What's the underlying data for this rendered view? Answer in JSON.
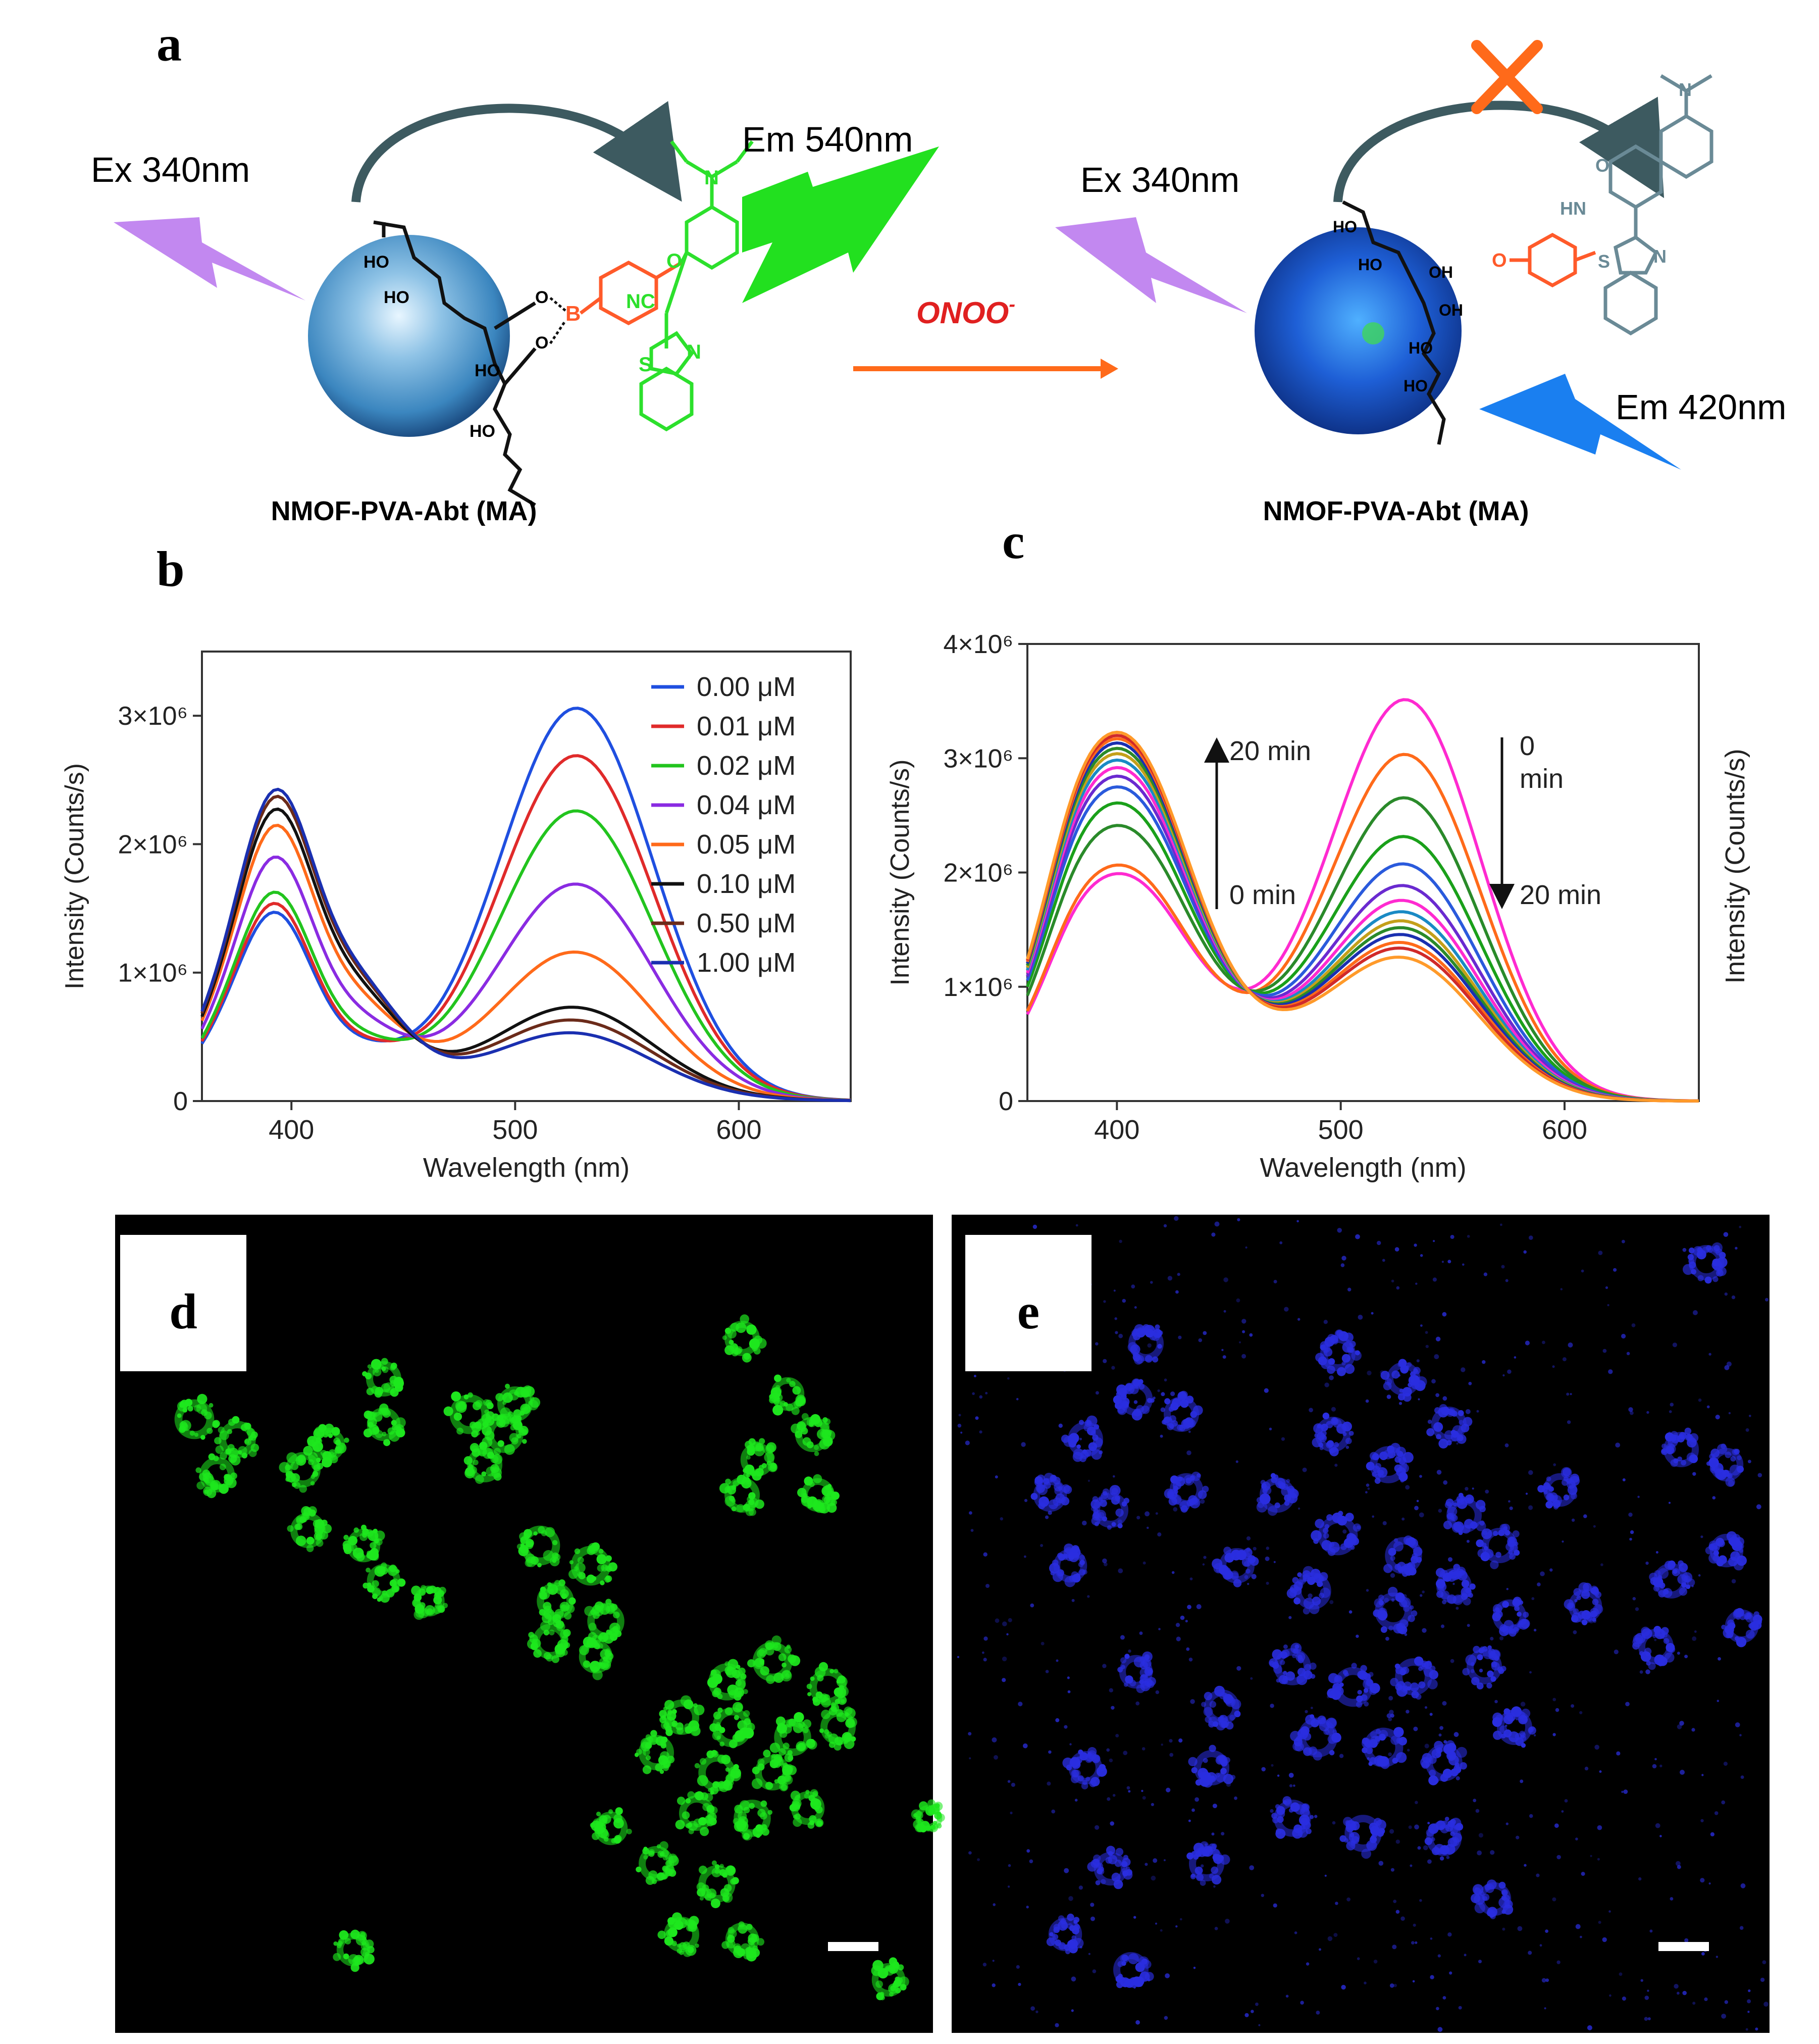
{
  "panel_a": {
    "letter": "a",
    "ex_left": "Ex 340nm",
    "em_left": "Em 540nm",
    "reagent": "ONOO",
    "reagent_sup": "-",
    "ex_right": "Ex 340nm",
    "em_right": "Em 420nm",
    "label_left": "NMOF-PVA-Abt (MA)",
    "label_right": "NMOF-PVA-Abt (MA)",
    "chem": {
      "ho": "HO",
      "oh": "OH",
      "o": "O",
      "b": "B",
      "nc": "NC",
      "s": "S",
      "n": "N",
      "hn": "HN"
    },
    "colors": {
      "sphere": "#3d8fc4",
      "sphere_dark": "#1a3f8a",
      "excitation": "#c288f0",
      "green_emission": "#22e01f",
      "blue_emission": "#1a7ff0",
      "arrow": "#ff6a1a",
      "probe_green": "#2ce02c",
      "boron_orange": "#ff5a2a",
      "product_gray": "#6a8a96"
    }
  },
  "panel_b": {
    "letter": "b"
  },
  "panel_c": {
    "letter": "c",
    "up_label": "20 min",
    "up_label_bottom": "0 min",
    "down_label_top1": "0",
    "down_label_top2": "min",
    "down_label_bottom": "20 min",
    "right_ylabel": "Intensity (Counts/s)"
  },
  "panel_d": {
    "letter": "d",
    "color": "#1ee81e"
  },
  "panel_e": {
    "letter": "e",
    "color": "#2a2ee0"
  },
  "chart_data": [
    {
      "type": "line",
      "panel": "b",
      "xlabel": "Wavelength (nm)",
      "ylabel": "Intensity (Counts/s)",
      "xlim": [
        360,
        650
      ],
      "ylim": [
        0,
        3500000
      ],
      "xticks": [
        400,
        500,
        600
      ],
      "yticks": [
        0,
        1000000,
        2000000,
        3000000
      ],
      "ytick_labels": [
        "0",
        "1×10⁶",
        "2×10⁶",
        "3×10⁶"
      ],
      "legend_position": "top-right",
      "series": [
        {
          "name": "0.00 μM",
          "color": "#1f4fe0",
          "peak1": 1500000,
          "peak2": 2950000,
          "shoulder": 0.35
        },
        {
          "name": "0.01 μM",
          "color": "#e02a2a",
          "peak1": 1570000,
          "peak2": 2580000,
          "shoulder": 0.36
        },
        {
          "name": "0.02 μM",
          "color": "#22c41e",
          "peak1": 1650000,
          "peak2": 2150000,
          "shoulder": 0.4
        },
        {
          "name": "0.04 μM",
          "color": "#8a2be2",
          "peak1": 1900000,
          "peak2": 1580000,
          "shoulder": 0.5
        },
        {
          "name": "0.05 μM",
          "color": "#ff6a1a",
          "peak1": 2120000,
          "peak2": 1050000,
          "shoulder": 0.58
        },
        {
          "name": "0.10 μM",
          "color": "#111111",
          "peak1": 2230000,
          "peak2": 620000,
          "shoulder": 0.62
        },
        {
          "name": "0.50 μM",
          "color": "#6b2b1a",
          "peak1": 2320000,
          "peak2": 520000,
          "shoulder": 0.64
        },
        {
          "name": "1.00 μM",
          "color": "#1a2fb0",
          "peak1": 2370000,
          "peak2": 420000,
          "shoulder": 0.65
        }
      ]
    },
    {
      "type": "line",
      "panel": "c",
      "xlabel": "Wavelength (nm)",
      "ylabel": "Intensity (Counts/s)",
      "xlim": [
        360,
        660
      ],
      "ylim": [
        0,
        4000000
      ],
      "xticks": [
        400,
        500,
        600
      ],
      "yticks": [
        0,
        1000000,
        2000000,
        3000000,
        4000000
      ],
      "ytick_labels": [
        "0",
        "1×10⁶",
        "2×10⁶",
        "3×10⁶",
        "4×10⁶"
      ],
      "series": [
        {
          "color": "#ff2ad0",
          "peak1": 2070000,
          "peak2": 3430000
        },
        {
          "color": "#ff6a1a",
          "peak1": 2150000,
          "peak2": 2950000
        },
        {
          "color": "#2a8a2a",
          "peak1": 2520000,
          "peak2": 2570000
        },
        {
          "color": "#1aa01a",
          "peak1": 2730000,
          "peak2": 2230000
        },
        {
          "color": "#2a5adc",
          "peak1": 2880000,
          "peak2": 1990000
        },
        {
          "color": "#6a2ad0",
          "peak1": 2980000,
          "peak2": 1800000
        },
        {
          "color": "#ff2ad0",
          "peak1": 3060000,
          "peak2": 1670000
        },
        {
          "color": "#1a8ac4",
          "peak1": 3130000,
          "peak2": 1570000
        },
        {
          "color": "#c4a01a",
          "peak1": 3190000,
          "peak2": 1490000
        },
        {
          "color": "#2a8a2a",
          "peak1": 3240000,
          "peak2": 1430000
        },
        {
          "color": "#1a2fb0",
          "peak1": 3290000,
          "peak2": 1370000
        },
        {
          "color": "#ff6a1a",
          "peak1": 3330000,
          "peak2": 1300000
        },
        {
          "color": "#d02a2a",
          "peak1": 3360000,
          "peak2": 1250000
        },
        {
          "color": "#ff9a2a",
          "peak1": 3390000,
          "peak2": 1170000
        }
      ]
    }
  ]
}
